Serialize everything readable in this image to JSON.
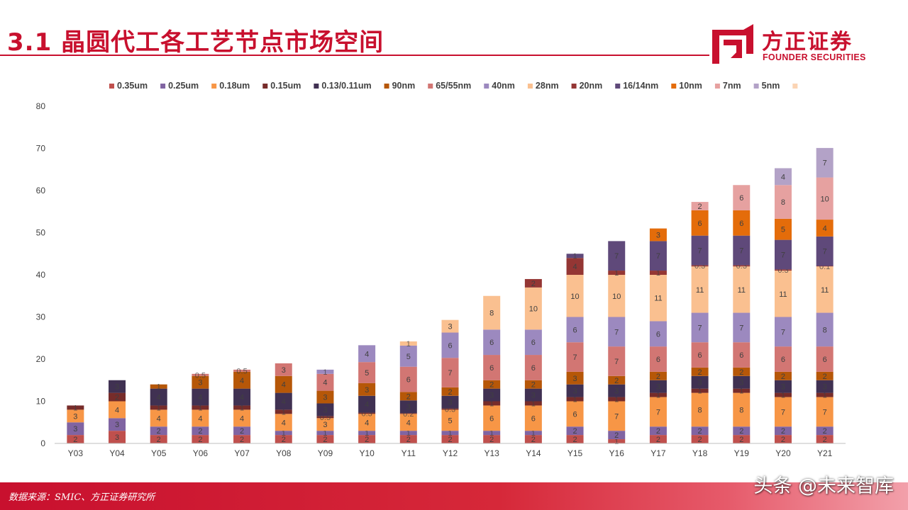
{
  "header": {
    "title": "3.1 晶圆代工各工艺节点市场空间",
    "logo_cn": "方正证券",
    "logo_en": "FOUNDER SECURITIES"
  },
  "footer": {
    "source": "数据来源：SMIC、方正证券研究所",
    "watermark": "头条 @未来智库"
  },
  "colors": {
    "brand": "#c8102e"
  },
  "chart_data": {
    "type": "bar",
    "stacked": true,
    "categories": [
      "Y03",
      "Y04",
      "Y05",
      "Y06",
      "Y07",
      "Y08",
      "Y09",
      "Y10",
      "Y11",
      "Y12",
      "Y13",
      "Y14",
      "Y15",
      "Y16",
      "Y17",
      "Y18",
      "Y19",
      "Y20",
      "Y21"
    ],
    "ylim": [
      0,
      80
    ],
    "yticks": [
      0,
      10,
      20,
      30,
      40,
      50,
      60,
      70,
      80
    ],
    "grid": false,
    "legend_position": "top",
    "series": [
      {
        "name": "0.35um",
        "color": "#c0504d",
        "values": [
          2,
          3,
          2,
          2,
          2,
          2,
          2,
          2,
          2,
          2,
          2,
          2,
          2,
          1,
          2,
          2,
          2,
          2,
          2
        ]
      },
      {
        "name": "0.25um",
        "color": "#8064a2",
        "values": [
          3,
          3,
          2,
          2,
          2,
          1,
          1,
          1,
          1,
          1,
          1,
          1,
          2,
          2,
          2,
          2,
          2,
          2,
          2
        ]
      },
      {
        "name": "0.18um",
        "color": "#f79646",
        "values": [
          3,
          4,
          4,
          4,
          4,
          4,
          3,
          4,
          4,
          5,
          6,
          6,
          6,
          7,
          7,
          8,
          8,
          7,
          7
        ]
      },
      {
        "name": "0.15um",
        "color": "#772c2a",
        "values": [
          1,
          2,
          1,
          1,
          1,
          1,
          0.5,
          0.3,
          0.2,
          0.3,
          1,
          1,
          1,
          1,
          1,
          1,
          1,
          1,
          1
        ]
      },
      {
        "name": "0.13/0.11um",
        "color": "#403152",
        "values": [
          0,
          3,
          4,
          4,
          4,
          4,
          3,
          4,
          3,
          3,
          3,
          3,
          3,
          3,
          3,
          3,
          3,
          3,
          3
        ]
      },
      {
        "name": "90nm",
        "color": "#b65708",
        "values": [
          0,
          0,
          1,
          3,
          4,
          4,
          3,
          3,
          2,
          2,
          2,
          2,
          3,
          2,
          2,
          2,
          2,
          2,
          2
        ]
      },
      {
        "name": "65/55nm",
        "color": "#d27673",
        "values": [
          0,
          0,
          0,
          0.5,
          0.5,
          3,
          4,
          5,
          6,
          7,
          6,
          6,
          7,
          7,
          6,
          6,
          6,
          6,
          6
        ]
      },
      {
        "name": "40nm",
        "color": "#9c89bf",
        "values": [
          0,
          0,
          0,
          0,
          0,
          0,
          1,
          4,
          5,
          6,
          6,
          6,
          6,
          7,
          6,
          7,
          7,
          7,
          8
        ]
      },
      {
        "name": "28nm",
        "color": "#fac090",
        "values": [
          0,
          0,
          0,
          0,
          0,
          0,
          0,
          0,
          1,
          3,
          8,
          10,
          10,
          10,
          11,
          11,
          11,
          11,
          11
        ]
      },
      {
        "name": "20nm",
        "color": "#943634",
        "values": [
          0,
          0,
          0,
          0,
          0,
          0,
          0,
          0,
          0,
          0,
          0,
          2,
          4,
          1,
          1,
          0.3,
          0.3,
          0.3,
          0.1
        ]
      },
      {
        "name": "16/14nm",
        "color": "#5f497a",
        "values": [
          0,
          0,
          0,
          0,
          0,
          0,
          0,
          0,
          0,
          0,
          0,
          0,
          1,
          7,
          7,
          7,
          7,
          7,
          7
        ]
      },
      {
        "name": "10nm",
        "color": "#e46c0a",
        "values": [
          0,
          0,
          0,
          0,
          0,
          0,
          0,
          0,
          0,
          0,
          0,
          0,
          0,
          0,
          3,
          6,
          6,
          5,
          4
        ]
      },
      {
        "name": "7nm",
        "color": "#e6a1a0",
        "values": [
          0,
          0,
          0,
          0,
          0,
          0,
          0,
          0,
          0,
          0,
          0,
          0,
          0,
          0,
          0,
          2,
          6,
          8,
          10
        ]
      },
      {
        "name": "5nm",
        "color": "#b3a2c7",
        "values": [
          0,
          0,
          0,
          0,
          0,
          0,
          0,
          0,
          0,
          0,
          0,
          0,
          0,
          0,
          0,
          0,
          0,
          4,
          7
        ]
      },
      {
        "name": "",
        "color": "#fbd4b4",
        "values": [
          0,
          0,
          0,
          0,
          0,
          0,
          0,
          0,
          0,
          0,
          0,
          0,
          0,
          0,
          0,
          0,
          0,
          0,
          0
        ]
      }
    ]
  }
}
